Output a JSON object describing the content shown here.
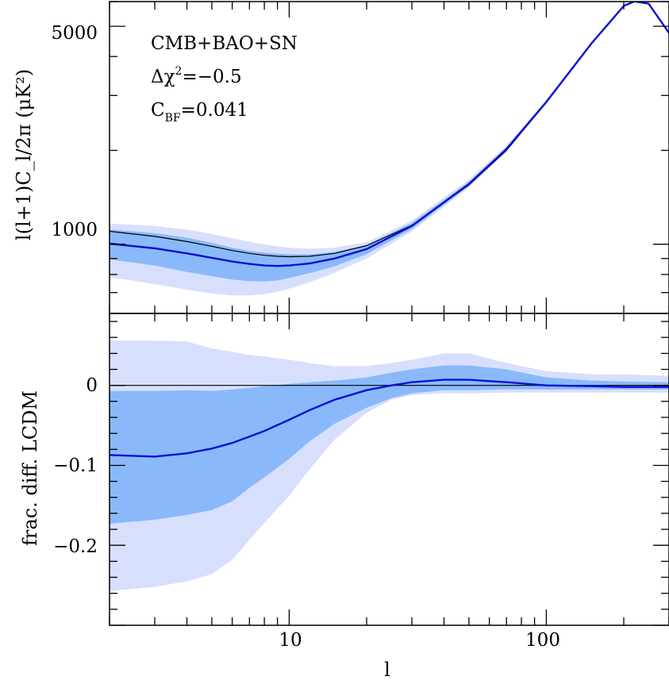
{
  "chart_data": [
    {
      "type": "area",
      "panel": "top",
      "ylabel": "l(l+1)C_l/2π  (μK²)",
      "xlabel": "",
      "x_scale": "log",
      "y_scale": "log",
      "xlim": [
        2,
        300
      ],
      "ylim": [
        600,
        6000
      ],
      "y_tick_labels": [
        {
          "value": 1000,
          "label": "1000"
        },
        {
          "value": 5000,
          "label": "5000"
        }
      ],
      "annotations": {
        "line1": "CMB+BAO+SN",
        "delta_chi2_label": "Δχ",
        "delta_chi2_sup": "2",
        "delta_chi2_value": "=−0.5",
        "cbf_c": "C",
        "cbf_sub": "BF",
        "cbf_value": "=0.041"
      },
      "reference_lcdm": {
        "x": [
          2,
          3,
          4,
          5,
          6,
          7,
          8,
          9,
          10,
          12,
          15,
          20,
          30,
          50,
          70,
          100,
          150,
          200,
          220,
          250,
          300
        ],
        "y": [
          1100,
          1060,
          1020,
          985,
          955,
          935,
          922,
          915,
          912,
          915,
          935,
          990,
          1150,
          1550,
          2000,
          2850,
          4400,
          5800,
          6000,
          5900,
          4750
        ]
      },
      "model_mean": {
        "x": [
          2,
          3,
          4,
          5,
          6,
          7,
          8,
          9,
          10,
          12,
          15,
          20,
          30,
          50,
          70,
          100,
          150,
          200,
          220,
          250,
          300
        ],
        "y": [
          1005,
          970,
          935,
          905,
          880,
          865,
          855,
          852,
          855,
          868,
          900,
          965,
          1145,
          1560,
          2020,
          2860,
          4410,
          5810,
          6010,
          5910,
          4760
        ]
      },
      "band_68": {
        "x": [
          2,
          3,
          4,
          5,
          6,
          7,
          8,
          9,
          10,
          12,
          15,
          20,
          30,
          50,
          70,
          100,
          150,
          200,
          220,
          250,
          300
        ],
        "lower": [
          895,
          855,
          815,
          790,
          770,
          762,
          760,
          765,
          780,
          808,
          850,
          930,
          1120,
          1540,
          2000,
          2840,
          4390,
          5790,
          5990,
          5890,
          4740
        ],
        "upper": [
          1115,
          1085,
          1050,
          1010,
          975,
          952,
          940,
          932,
          928,
          928,
          945,
          995,
          1170,
          1585,
          2045,
          2880,
          4430,
          5830,
          6030,
          5930,
          4780
        ]
      },
      "band_95": {
        "x": [
          2,
          3,
          4,
          5,
          6,
          7,
          8,
          9,
          10,
          12,
          15,
          20,
          30,
          50,
          70,
          100,
          150,
          200,
          220,
          250,
          300
        ],
        "lower": [
          785,
          745,
          715,
          695,
          685,
          685,
          692,
          705,
          720,
          755,
          810,
          900,
          1100,
          1520,
          1980,
          2820,
          4370,
          5770,
          5970,
          5870,
          4720
        ],
        "upper": [
          1165,
          1145,
          1115,
          1080,
          1045,
          1018,
          1000,
          985,
          975,
          968,
          975,
          1015,
          1190,
          1610,
          2070,
          2905,
          4455,
          5855,
          6055,
          5955,
          4800
        ]
      },
      "colors": {
        "band_95": "#d8dffd",
        "band_68": "#8ab9fb",
        "mean": "#0b10d6",
        "reference": "#000000"
      }
    },
    {
      "type": "area",
      "panel": "bottom",
      "ylabel": "frac. diff. LCDM",
      "xlabel": "l",
      "x_scale": "log",
      "xlim": [
        2,
        300
      ],
      "ylim": [
        -0.3,
        0.09
      ],
      "x_tick_labels": [
        {
          "value": 10,
          "label": "10"
        },
        {
          "value": 100,
          "label": "100"
        }
      ],
      "y_tick_labels": [
        {
          "value": 0,
          "label": "0"
        },
        {
          "value": -0.1,
          "label": "−0.1"
        },
        {
          "value": -0.2,
          "label": "−0.2"
        }
      ],
      "model_mean": {
        "x": [
          2,
          3,
          4,
          5,
          6,
          7,
          8,
          10,
          12,
          15,
          20,
          25,
          30,
          40,
          50,
          70,
          100,
          150,
          200,
          300
        ],
        "y": [
          -0.087,
          -0.089,
          -0.085,
          -0.079,
          -0.072,
          -0.064,
          -0.057,
          -0.043,
          -0.031,
          -0.018,
          -0.006,
          0.0,
          0.004,
          0.007,
          0.007,
          0.004,
          0.0,
          -0.001,
          -0.002,
          -0.002
        ]
      },
      "band_68": {
        "x": [
          2,
          3,
          4,
          5,
          6,
          7,
          8,
          10,
          12,
          15,
          20,
          25,
          30,
          40,
          50,
          70,
          100,
          150,
          200,
          300
        ],
        "lower": [
          -0.173,
          -0.168,
          -0.162,
          -0.156,
          -0.145,
          -0.128,
          -0.115,
          -0.092,
          -0.07,
          -0.048,
          -0.028,
          -0.016,
          -0.01,
          -0.006,
          -0.006,
          -0.005,
          -0.005,
          -0.005,
          -0.005,
          -0.005
        ],
        "upper": [
          -0.007,
          -0.007,
          -0.006,
          -0.007,
          -0.005,
          -0.003,
          -0.001,
          0.002,
          0.004,
          0.006,
          0.01,
          0.016,
          0.02,
          0.025,
          0.025,
          0.02,
          0.01,
          0.006,
          0.005,
          0.004
        ]
      },
      "band_95": {
        "x": [
          2,
          3,
          4,
          5,
          6,
          7,
          8,
          10,
          12,
          15,
          20,
          25,
          30,
          40,
          50,
          70,
          100,
          150,
          200,
          300
        ],
        "lower": [
          -0.257,
          -0.252,
          -0.245,
          -0.236,
          -0.218,
          -0.193,
          -0.172,
          -0.138,
          -0.105,
          -0.068,
          -0.034,
          -0.018,
          -0.012,
          -0.01,
          -0.01,
          -0.009,
          -0.009,
          -0.009,
          -0.009,
          -0.009
        ],
        "upper": [
          0.056,
          0.056,
          0.055,
          0.046,
          0.042,
          0.038,
          0.036,
          0.032,
          0.028,
          0.024,
          0.024,
          0.028,
          0.032,
          0.04,
          0.04,
          0.028,
          0.018,
          0.014,
          0.014,
          0.012
        ]
      },
      "reference_zero": 0,
      "colors": {
        "band_95": "#d8dffd",
        "band_68": "#8ab9fb",
        "mean": "#0b10d6",
        "reference": "#000000"
      }
    }
  ]
}
